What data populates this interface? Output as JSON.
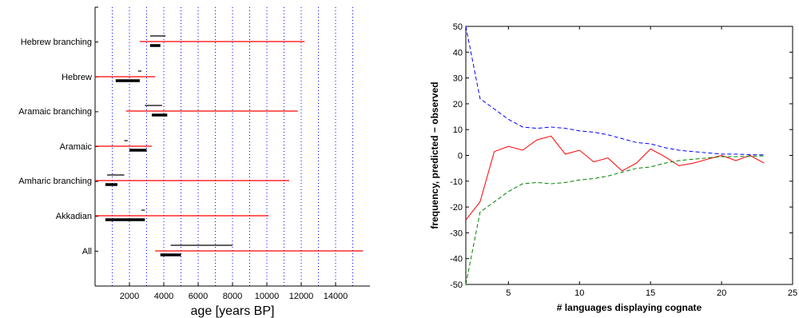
{
  "chart_data": [
    {
      "type": "range",
      "xlabel": "age [years BP]",
      "xticks": [
        2000,
        4000,
        6000,
        8000,
        10000,
        12000,
        14000
      ],
      "xlim": [
        0,
        16000
      ],
      "grid": "vertical dotted every 1000",
      "categories": [
        "Hebrew branching",
        "Hebrew",
        "Aramaic branching",
        "Aramaic",
        "Amharic branching",
        "Akkadian",
        "All"
      ],
      "red_range": [
        [
          2600,
          12200
        ],
        [
          0,
          3500
        ],
        [
          1800,
          11800
        ],
        [
          0,
          3300
        ],
        [
          0,
          11300
        ],
        [
          0,
          10100
        ],
        [
          3500,
          15600
        ]
      ],
      "thin_range": [
        [
          3200,
          4100
        ],
        [
          2500,
          2700
        ],
        [
          2900,
          3900
        ],
        [
          1700,
          1900
        ],
        [
          700,
          1700
        ],
        [
          2700,
          2900
        ],
        [
          4400,
          8000
        ]
      ],
      "thick_range": [
        [
          3200,
          3800
        ],
        [
          1200,
          2600
        ],
        [
          3300,
          4200
        ],
        [
          2000,
          3000
        ],
        [
          600,
          1300
        ],
        [
          600,
          2900
        ],
        [
          3800,
          5000
        ]
      ],
      "colors": {
        "range": "#ff0000",
        "estimate": "#000000",
        "grid": "#0000ff"
      }
    },
    {
      "type": "line",
      "xlabel": "# languages displaying cognate",
      "ylabel": "frequency, predicted − observed",
      "xlim": [
        2,
        25
      ],
      "ylim": [
        -50,
        50
      ],
      "xticks": [
        5,
        10,
        15,
        20,
        25
      ],
      "yticks": [
        -50,
        -40,
        -30,
        -20,
        -10,
        0,
        10,
        20,
        30,
        40,
        50
      ],
      "x": [
        2,
        3,
        4,
        5,
        6,
        7,
        8,
        9,
        10,
        11,
        12,
        13,
        14,
        15,
        16,
        17,
        18,
        19,
        20,
        21,
        22,
        23
      ],
      "series": [
        {
          "style": "dashed",
          "color": "#0000ff",
          "values": [
            50,
            22,
            18,
            14,
            11,
            10.5,
            11,
            10.5,
            9.5,
            9,
            8,
            6.5,
            5,
            4.5,
            3,
            2,
            1.5,
            1,
            0.5,
            0.5,
            0.3,
            0.2
          ]
        },
        {
          "style": "solid",
          "color": "#ff0000",
          "values": [
            -25,
            -18,
            1.5,
            3.5,
            2,
            6,
            7.5,
            0.5,
            2,
            -2.5,
            -1,
            -6,
            -3,
            2.5,
            -0.5,
            -4,
            -3,
            -1.5,
            0,
            -2,
            0,
            -3
          ]
        },
        {
          "style": "dashed",
          "color": "#008000",
          "values": [
            -50,
            -22,
            -18,
            -14,
            -11,
            -10.5,
            -11,
            -10.5,
            -9.5,
            -9,
            -8,
            -6.5,
            -5,
            -4.5,
            -3,
            -2,
            -1.5,
            -1,
            -0.5,
            -0.5,
            -0.3,
            -0.2
          ]
        }
      ]
    }
  ]
}
